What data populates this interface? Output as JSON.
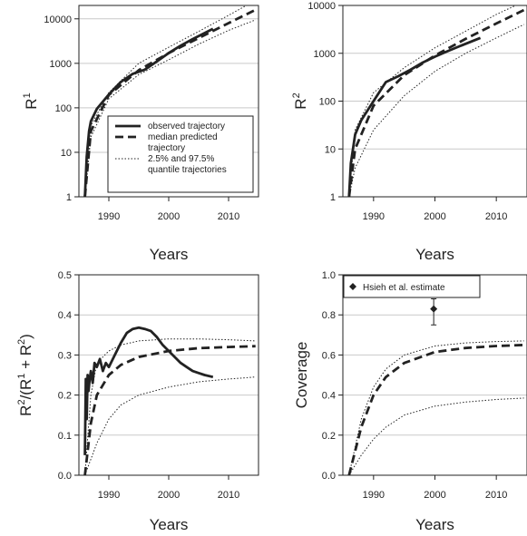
{
  "chart_data": [
    {
      "id": "r1",
      "type": "line",
      "ylabel": "R",
      "ylabel_sup": "1",
      "xlabel": "Years",
      "yscale": "log",
      "xlim": [
        1985,
        2015
      ],
      "ylim": [
        1,
        20000
      ],
      "xticks": [
        1990,
        2000,
        2010
      ],
      "yticks": [
        1,
        10,
        100,
        1000,
        10000
      ],
      "ytick_labels": [
        "1",
        "10",
        "100",
        "1000",
        "10000"
      ],
      "grid": true,
      "legend": {
        "placement": "lower-right",
        "entries": [
          {
            "style": "solid",
            "lines": [
              "observed trajectory"
            ]
          },
          {
            "style": "dashed",
            "lines": [
              "median predicted",
              "trajectory"
            ]
          },
          {
            "style": "dotted",
            "lines": [
              "2.5% and 97.5%",
              "quantile trajectories"
            ]
          }
        ]
      },
      "series": [
        {
          "style": "dotted",
          "x": [
            1986,
            1987,
            1990,
            1995,
            2000,
            2005,
            2010,
            2014.5
          ],
          "y": [
            1,
            40,
            220,
            1000,
            2300,
            5200,
            12000,
            26000
          ]
        },
        {
          "style": "dotted",
          "x": [
            1986,
            1987,
            1990,
            1995,
            2000,
            2005,
            2010,
            2014.5
          ],
          "y": [
            1,
            22,
            160,
            560,
            1200,
            2700,
            5500,
            9500
          ]
        },
        {
          "style": "dashed",
          "x": [
            1986,
            1987,
            1990,
            1995,
            2000,
            2005,
            2010,
            2014.5
          ],
          "y": [
            1,
            30,
            195,
            700,
            1700,
            3700,
            8000,
            16000
          ]
        },
        {
          "style": "solid",
          "x": [
            1986,
            1986.3,
            1986.7,
            1987,
            1988,
            1990,
            1992,
            1994,
            1996,
            1998,
            2000,
            2002,
            2004,
            2007.4
          ],
          "y": [
            1,
            8,
            30,
            50,
            95,
            200,
            380,
            580,
            720,
            1100,
            1700,
            2500,
            3500,
            6000
          ]
        }
      ]
    },
    {
      "id": "r2",
      "type": "line",
      "ylabel": "R",
      "ylabel_sup": "2",
      "xlabel": "Years",
      "yscale": "log",
      "xlim": [
        1985,
        2015
      ],
      "ylim": [
        1,
        10000
      ],
      "xticks": [
        1990,
        2000,
        2010
      ],
      "yticks": [
        1,
        10,
        100,
        1000,
        10000
      ],
      "ytick_labels": [
        "1",
        "10",
        "100",
        "1000",
        "10000"
      ],
      "grid": true,
      "series": [
        {
          "style": "dotted",
          "x": [
            1986,
            1987,
            1990,
            1995,
            2000,
            2005,
            2010,
            2014.5
          ],
          "y": [
            1,
            25,
            150,
            500,
            1300,
            2900,
            6500,
            12000
          ]
        },
        {
          "style": "dotted",
          "x": [
            1986,
            1987,
            1990,
            1995,
            2000,
            2005,
            2010,
            2014.5
          ],
          "y": [
            1,
            4,
            25,
            130,
            420,
            1000,
            2100,
            4000
          ]
        },
        {
          "style": "dashed",
          "x": [
            1986,
            1987,
            1990,
            1995,
            2000,
            2005,
            2010,
            2014.5
          ],
          "y": [
            1,
            10,
            80,
            350,
            900,
            2000,
            4200,
            8000
          ]
        },
        {
          "style": "solid",
          "x": [
            1986,
            1986.3,
            1987,
            1988,
            1990,
            1992,
            1994,
            1996,
            1998,
            2000,
            2002,
            2004,
            2007.4
          ],
          "y": [
            1,
            5,
            20,
            40,
            100,
            250,
            330,
            450,
            640,
            850,
            1100,
            1400,
            2100
          ]
        }
      ]
    },
    {
      "id": "ratio",
      "type": "line",
      "ylabel_parts": [
        "R",
        "2",
        "/(R",
        "1",
        " + R",
        "2",
        ")"
      ],
      "xlabel": "Years",
      "xlim": [
        1985,
        2015
      ],
      "ylim": [
        0,
        0.5
      ],
      "xticks": [
        1990,
        2000,
        2010
      ],
      "yticks": [
        0,
        0.1,
        0.2,
        0.3,
        0.4,
        0.5
      ],
      "ytick_labels": [
        "0.0",
        "0.1",
        "0.2",
        "0.3",
        "0.4",
        "0.5"
      ],
      "grid": true,
      "series": [
        {
          "style": "dotted",
          "x": [
            1986,
            1987,
            1988,
            1990,
            1992,
            1995,
            2000,
            2005,
            2010,
            2014.5
          ],
          "y": [
            0.0,
            0.2,
            0.28,
            0.31,
            0.325,
            0.335,
            0.34,
            0.34,
            0.338,
            0.335
          ]
        },
        {
          "style": "dotted",
          "x": [
            1986,
            1987,
            1988,
            1990,
            1992,
            1995,
            2000,
            2005,
            2010,
            2014.5
          ],
          "y": [
            0.0,
            0.04,
            0.08,
            0.14,
            0.175,
            0.2,
            0.22,
            0.233,
            0.24,
            0.245
          ]
        },
        {
          "style": "dashed",
          "x": [
            1986,
            1987,
            1988,
            1990,
            1992,
            1995,
            2000,
            2005,
            2010,
            2014.5
          ],
          "y": [
            0.0,
            0.13,
            0.2,
            0.25,
            0.275,
            0.295,
            0.31,
            0.317,
            0.32,
            0.322
          ]
        },
        {
          "style": "solid",
          "x": [
            1986,
            1986.15,
            1986.3,
            1986.45,
            1986.6,
            1986.8,
            1987,
            1987.3,
            1987.6,
            1988,
            1988.5,
            1989,
            1989.5,
            1990,
            1991,
            1992,
            1993,
            1994,
            1995,
            1996,
            1997,
            1998,
            1999,
            2000,
            2001,
            2002,
            2003,
            2004,
            2005,
            2006,
            2007.4
          ],
          "y": [
            0.05,
            0.24,
            0.14,
            0.25,
            0.21,
            0.24,
            0.26,
            0.23,
            0.28,
            0.27,
            0.29,
            0.26,
            0.28,
            0.27,
            0.3,
            0.33,
            0.355,
            0.365,
            0.368,
            0.365,
            0.36,
            0.345,
            0.325,
            0.31,
            0.295,
            0.28,
            0.27,
            0.26,
            0.255,
            0.25,
            0.245
          ]
        }
      ]
    },
    {
      "id": "coverage",
      "type": "line",
      "ylabel": "Coverage",
      "xlabel": "Years",
      "xlim": [
        1985,
        2015
      ],
      "ylim": [
        0,
        1.0
      ],
      "xticks": [
        1990,
        2000,
        2010
      ],
      "yticks": [
        0,
        0.2,
        0.4,
        0.6,
        0.8,
        1.0
      ],
      "ytick_labels": [
        "0.0",
        "0.2",
        "0.4",
        "0.6",
        "0.8",
        "1.0"
      ],
      "grid": true,
      "legend": {
        "placement": "top-left",
        "entries": [
          {
            "style": "point",
            "lines": [
              "Hsieh et al. estimate"
            ]
          }
        ]
      },
      "series": [
        {
          "style": "dotted",
          "x": [
            1986,
            1987,
            1988,
            1990,
            1992,
            1995,
            2000,
            2005,
            2010,
            2014.5
          ],
          "y": [
            0.0,
            0.14,
            0.28,
            0.44,
            0.53,
            0.6,
            0.645,
            0.66,
            0.667,
            0.67
          ]
        },
        {
          "style": "dotted",
          "x": [
            1986,
            1987,
            1988,
            1990,
            1992,
            1995,
            2000,
            2005,
            2010,
            2014.5
          ],
          "y": [
            0.0,
            0.05,
            0.1,
            0.18,
            0.24,
            0.3,
            0.345,
            0.365,
            0.378,
            0.385
          ]
        },
        {
          "style": "dashed",
          "x": [
            1986,
            1987,
            1988,
            1990,
            1992,
            1995,
            2000,
            2005,
            2010,
            2014.5
          ],
          "y": [
            0.0,
            0.12,
            0.24,
            0.4,
            0.49,
            0.56,
            0.615,
            0.635,
            0.645,
            0.65
          ]
        }
      ],
      "points": [
        {
          "x": 1999.8,
          "y": 0.83,
          "ylow": 0.75,
          "yhigh": 0.88
        }
      ]
    }
  ]
}
